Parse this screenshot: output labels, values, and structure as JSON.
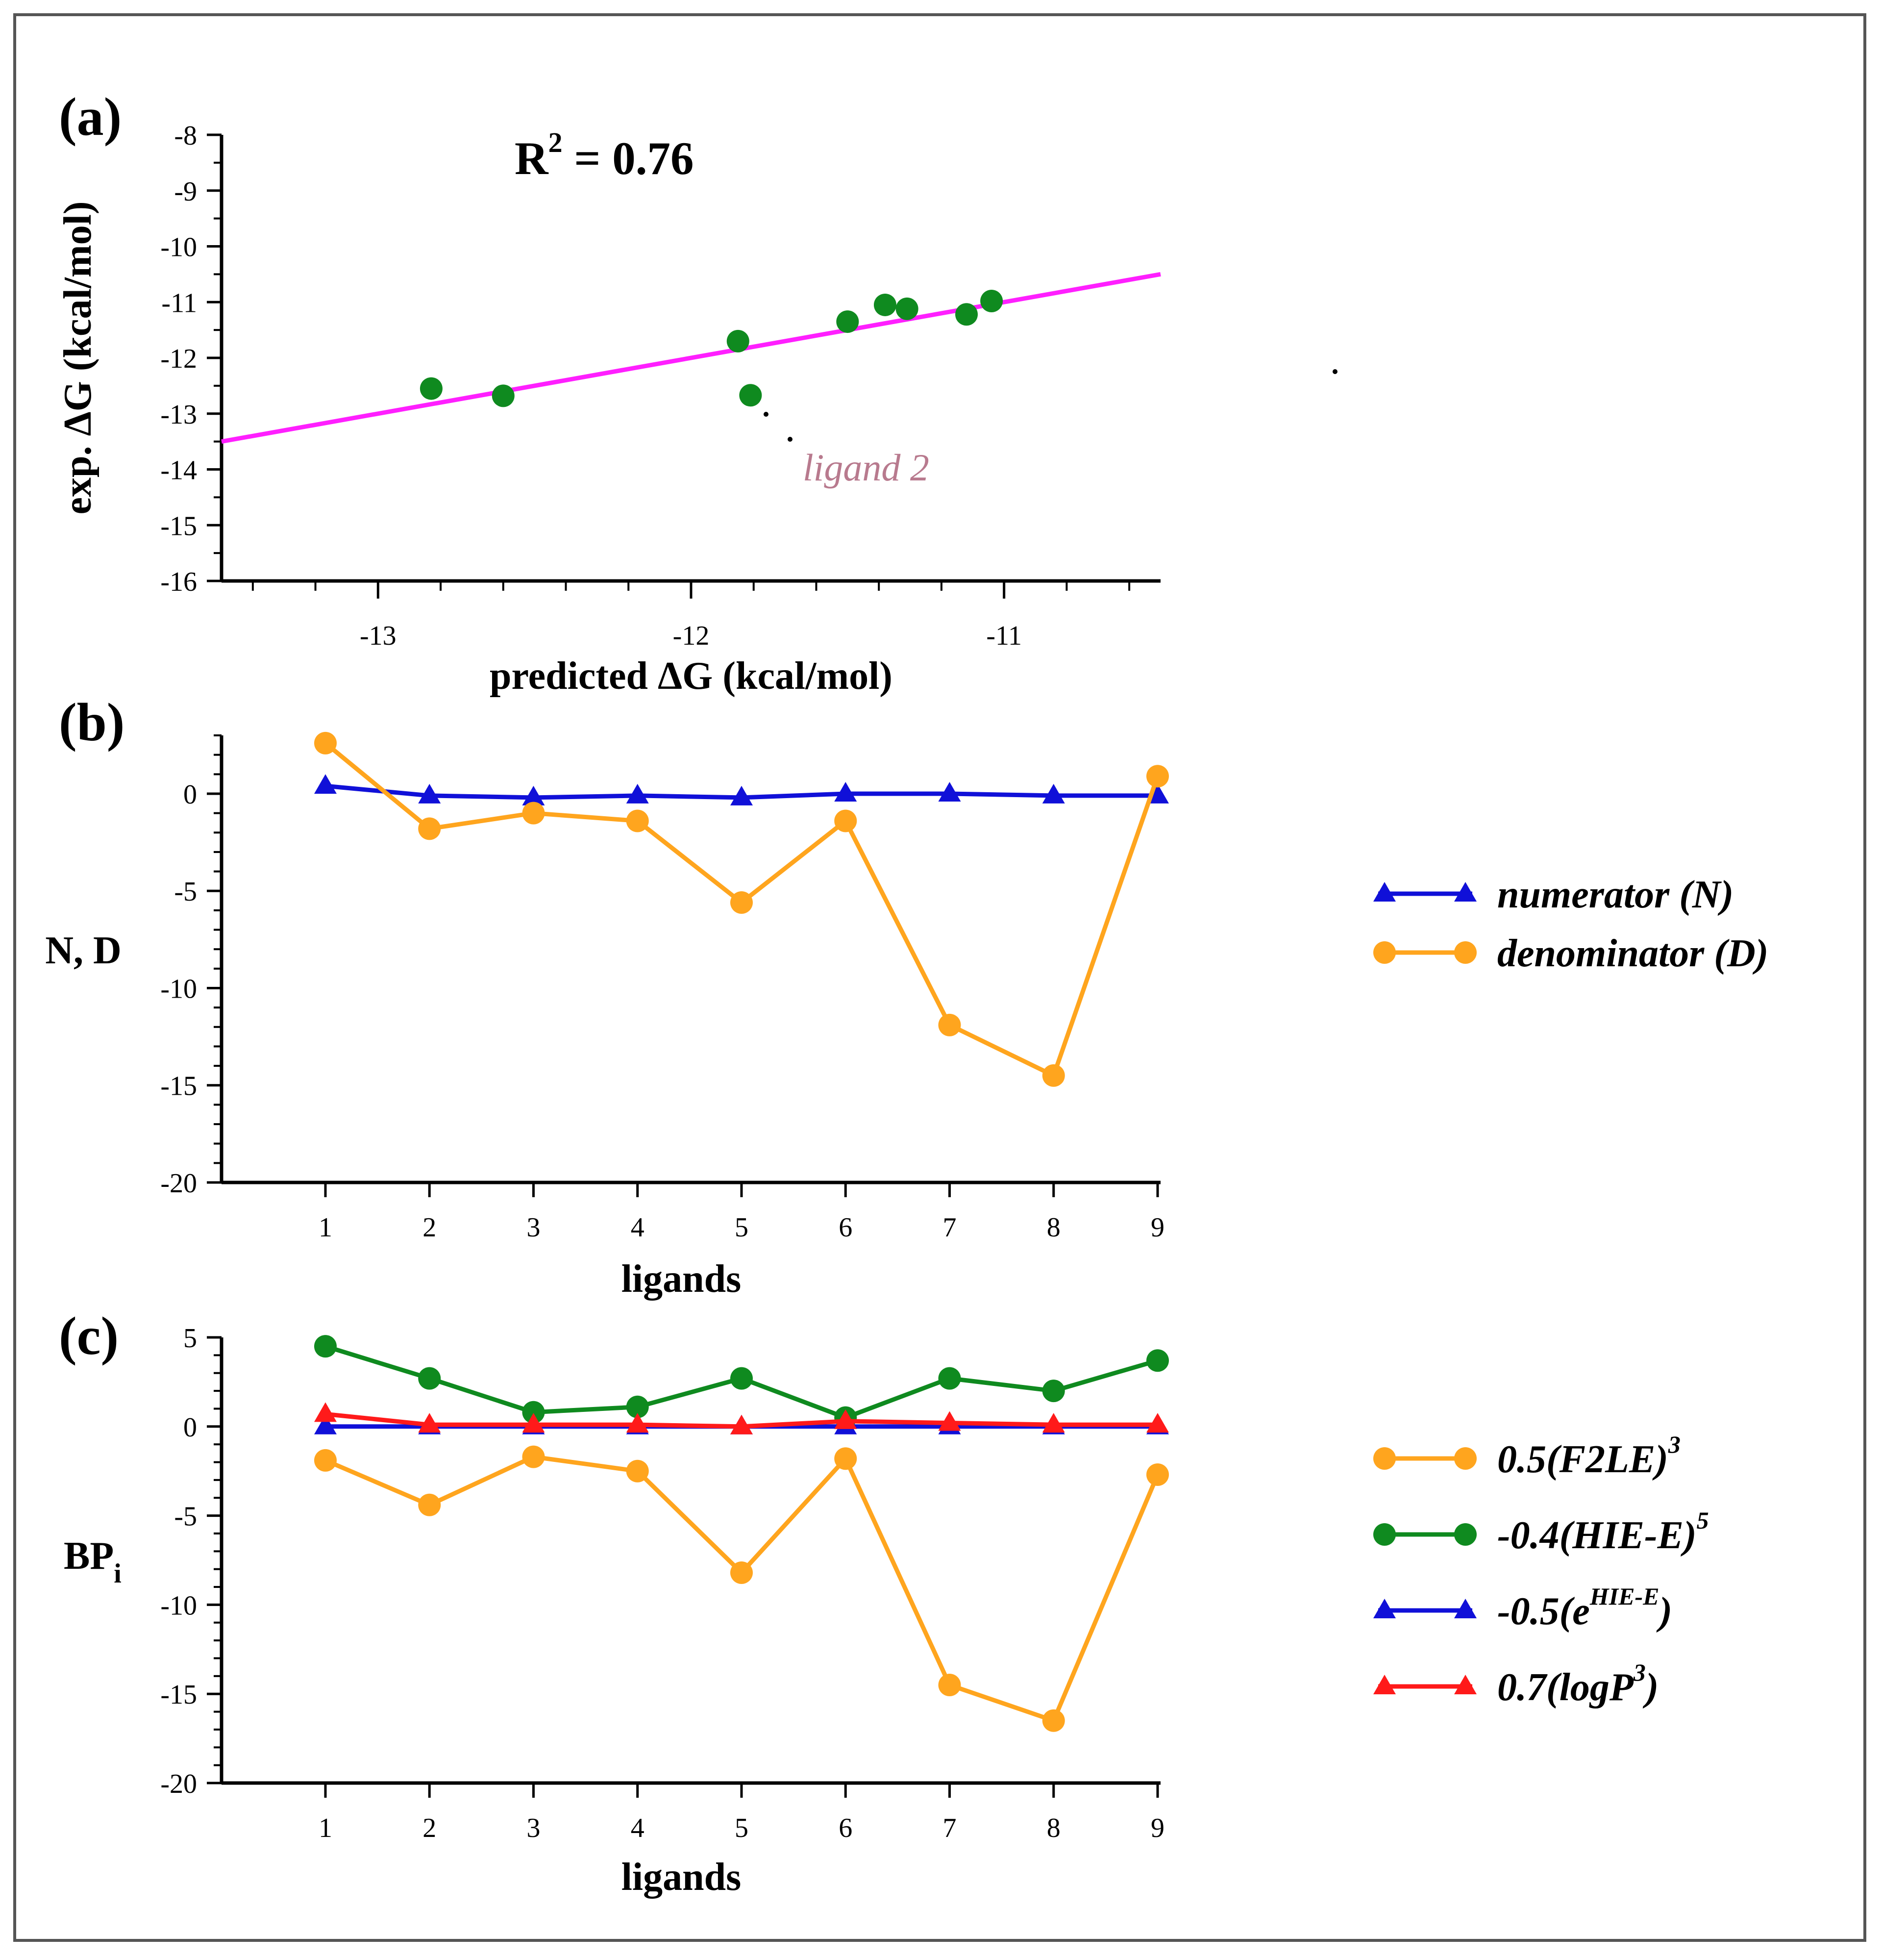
{
  "chart_data": [
    {
      "panel": "(a)",
      "type": "scatter",
      "annotation": "R² = 0.76",
      "annotation_base": "R",
      "annotation_sup": "2",
      "annotation_rest": " = 0.76",
      "xlabel": "predicted ΔG (kcal/mol)",
      "ylabel": "exp.  ΔG (kcal/mol)",
      "xlim": [
        -13.5,
        -10.5
      ],
      "ylim": [
        -16,
        -8
      ],
      "xticks": [
        -13,
        -12,
        -11
      ],
      "yticks": [
        -8,
        -9,
        -10,
        -11,
        -12,
        -13,
        -14,
        -15,
        -16
      ],
      "points": [
        {
          "x": -12.83,
          "y": -12.55
        },
        {
          "x": -12.6,
          "y": -12.68
        },
        {
          "x": -11.85,
          "y": -11.7
        },
        {
          "x": -11.81,
          "y": -12.67
        },
        {
          "x": -11.5,
          "y": -11.35
        },
        {
          "x": -11.38,
          "y": -11.05
        },
        {
          "x": -11.31,
          "y": -11.12
        },
        {
          "x": -11.12,
          "y": -11.22
        },
        {
          "x": -11.04,
          "y": -10.98
        }
      ],
      "fit_line": {
        "x": [
          -13.5,
          -10.5
        ],
        "y": [
          -13.5,
          -10.5
        ]
      },
      "callout": "ligand 2",
      "callout_point_index": 3,
      "colors": {
        "points": "#0f8a1f",
        "line": "#ff1fff",
        "callout": "#b87a8e"
      }
    },
    {
      "panel": "(b)",
      "type": "line",
      "xlabel": "ligands",
      "ylabel": "N, D",
      "categories": [
        "1",
        "2",
        "3",
        "4",
        "5",
        "6",
        "7",
        "8",
        "9"
      ],
      "ylim": [
        -20,
        3
      ],
      "yticks": [
        0,
        -5,
        -10,
        -15,
        -20
      ],
      "series": [
        {
          "name": "numerator (N)",
          "values": [
            0.4,
            -0.1,
            -0.2,
            -0.1,
            -0.2,
            0.0,
            0.0,
            -0.1,
            -0.1
          ],
          "color": "#1010d8",
          "marker": "triangle"
        },
        {
          "name": "denominator (D)",
          "values": [
            2.6,
            -1.8,
            -1.0,
            -1.4,
            -5.6,
            -1.4,
            -11.9,
            -14.5,
            0.9
          ],
          "color": "#ffa51e",
          "marker": "circle"
        }
      ]
    },
    {
      "panel": "(c)",
      "type": "line",
      "xlabel": "ligands",
      "ylabel_base": "BP",
      "ylabel_sub": "i",
      "categories": [
        "1",
        "2",
        "3",
        "4",
        "5",
        "6",
        "7",
        "8",
        "9"
      ],
      "ylim": [
        -20,
        5
      ],
      "yticks": [
        5,
        0,
        -5,
        -10,
        -15,
        -20
      ],
      "series": [
        {
          "name": "0.5(F2LE)",
          "sup": "3",
          "suffix": "",
          "values": [
            -1.9,
            -4.4,
            -1.7,
            -2.5,
            -8.2,
            -1.8,
            -14.5,
            -16.5,
            -2.7
          ],
          "color": "#ffa51e",
          "marker": "circle"
        },
        {
          "name": "-0.4(HIE-E)",
          "sup": "5",
          "suffix": "",
          "values": [
            4.5,
            2.7,
            0.8,
            1.1,
            2.7,
            0.5,
            2.7,
            2.0,
            3.7
          ],
          "color": "#0f8a1f",
          "marker": "circle"
        },
        {
          "name": "-0.5(e",
          "sup": "HIE-E",
          "suffix": ")",
          "values": [
            0.0,
            0.0,
            0.0,
            0.0,
            0.0,
            0.0,
            0.0,
            0.0,
            0.0
          ],
          "color": "#1010d8",
          "marker": "triangle"
        },
        {
          "name": "0.7(logP",
          "sup": "3",
          "suffix": ")",
          "values": [
            0.7,
            0.1,
            0.1,
            0.1,
            0.0,
            0.3,
            0.2,
            0.1,
            0.1
          ],
          "color": "#ff1a1a",
          "marker": "triangle"
        }
      ]
    }
  ]
}
